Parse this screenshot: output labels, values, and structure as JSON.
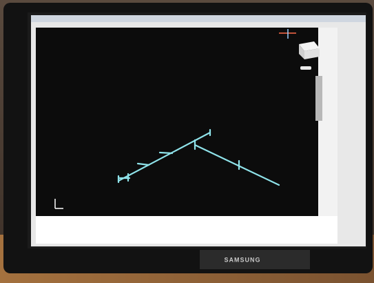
{
  "monitor": {
    "brand": "SAMSUNG"
  }
}
